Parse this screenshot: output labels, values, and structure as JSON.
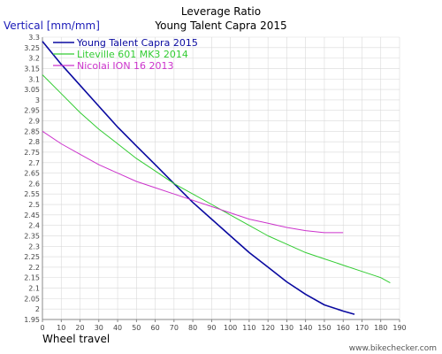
{
  "chart_data": {
    "type": "line",
    "title": "Leverage Ratio",
    "subtitle": "Young Talent Capra 2015",
    "ylabel": "Vertical [mm/mm]",
    "xlabel": "Wheel travel",
    "xlim": [
      0,
      190
    ],
    "ylim": [
      1.95,
      3.3
    ],
    "x_ticks": [
      "0",
      "10",
      "20",
      "30",
      "40",
      "50",
      "60",
      "70",
      "80",
      "90",
      "100",
      "110",
      "120",
      "130",
      "140",
      "150",
      "160",
      "170",
      "180",
      "190"
    ],
    "y_ticks": [
      "1.95",
      "2",
      "2.05",
      "2.1",
      "2.15",
      "2.2",
      "2.25",
      "2.3",
      "2.35",
      "2.4",
      "2.45",
      "2.5",
      "2.55",
      "2.6",
      "2.65",
      "2.7",
      "2.75",
      "2.8",
      "2.85",
      "2.9",
      "2.95",
      "3",
      "3.05",
      "3.1",
      "3.15",
      "3.2",
      "3.25",
      "3.3"
    ],
    "grid": true,
    "legend_position": "top-left",
    "series": [
      {
        "name": "Young Talent Capra 2015",
        "color": "#0a0aa0",
        "x": [
          0,
          10,
          20,
          30,
          40,
          50,
          60,
          70,
          80,
          90,
          100,
          110,
          120,
          130,
          140,
          150,
          160,
          166
        ],
        "y": [
          3.28,
          3.17,
          3.07,
          2.97,
          2.87,
          2.78,
          2.69,
          2.6,
          2.51,
          2.43,
          2.35,
          2.27,
          2.2,
          2.13,
          2.07,
          2.02,
          1.99,
          1.975
        ]
      },
      {
        "name": "Liteville 601 MK3 2014",
        "color": "#33cc33",
        "x": [
          0,
          10,
          20,
          30,
          40,
          50,
          60,
          70,
          80,
          90,
          100,
          110,
          120,
          130,
          140,
          150,
          160,
          170,
          180,
          185
        ],
        "y": [
          3.12,
          3.03,
          2.94,
          2.86,
          2.79,
          2.72,
          2.66,
          2.6,
          2.55,
          2.5,
          2.45,
          2.4,
          2.35,
          2.31,
          2.27,
          2.24,
          2.21,
          2.18,
          2.15,
          2.125
        ]
      },
      {
        "name": "Nicolai ION 16 2013",
        "color": "#cc33cc",
        "x": [
          0,
          10,
          20,
          30,
          40,
          50,
          60,
          70,
          80,
          90,
          100,
          110,
          120,
          130,
          140,
          150,
          160
        ],
        "y": [
          2.85,
          2.79,
          2.74,
          2.69,
          2.65,
          2.61,
          2.58,
          2.55,
          2.52,
          2.49,
          2.46,
          2.43,
          2.41,
          2.39,
          2.375,
          2.365,
          2.365
        ]
      }
    ]
  },
  "footer": {
    "watermark": "www.bikechecker.com"
  }
}
